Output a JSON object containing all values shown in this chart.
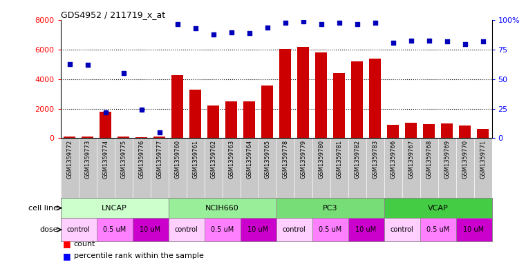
{
  "title": "GDS4952 / 211719_x_at",
  "samples": [
    "GSM1359772",
    "GSM1359773",
    "GSM1359774",
    "GSM1359775",
    "GSM1359776",
    "GSM1359777",
    "GSM1359760",
    "GSM1359761",
    "GSM1359762",
    "GSM1359763",
    "GSM1359764",
    "GSM1359765",
    "GSM1359778",
    "GSM1359779",
    "GSM1359780",
    "GSM1359781",
    "GSM1359782",
    "GSM1359783",
    "GSM1359766",
    "GSM1359767",
    "GSM1359768",
    "GSM1359769",
    "GSM1359770",
    "GSM1359771"
  ],
  "counts": [
    120,
    100,
    1800,
    100,
    80,
    120,
    4300,
    3300,
    2200,
    2500,
    2500,
    3600,
    6050,
    6200,
    5800,
    4400,
    5200,
    5400,
    900,
    1050,
    950,
    1000,
    850,
    650
  ],
  "percentiles": [
    63,
    62,
    22,
    55,
    24,
    5,
    97,
    93,
    88,
    90,
    89,
    94,
    98,
    99,
    97,
    98,
    97,
    98,
    81,
    83,
    83,
    82,
    80,
    82
  ],
  "cell_lines": [
    {
      "name": "LNCAP",
      "start": 0,
      "end": 6,
      "color": "#CCFFCC"
    },
    {
      "name": "NCIH660",
      "start": 6,
      "end": 12,
      "color": "#99EE99"
    },
    {
      "name": "PC3",
      "start": 12,
      "end": 18,
      "color": "#77DD77"
    },
    {
      "name": "VCAP",
      "start": 18,
      "end": 24,
      "color": "#44CC44"
    }
  ],
  "dose_groups": [
    {
      "label": "control",
      "start": 0,
      "end": 2,
      "color": "#FFD0FF"
    },
    {
      "label": "0.5 uM",
      "start": 2,
      "end": 4,
      "color": "#FF80FF"
    },
    {
      "label": "10 uM",
      "start": 4,
      "end": 6,
      "color": "#CC00CC"
    },
    {
      "label": "control",
      "start": 6,
      "end": 8,
      "color": "#FFD0FF"
    },
    {
      "label": "0.5 uM",
      "start": 8,
      "end": 10,
      "color": "#FF80FF"
    },
    {
      "label": "10 uM",
      "start": 10,
      "end": 12,
      "color": "#CC00CC"
    },
    {
      "label": "control",
      "start": 12,
      "end": 14,
      "color": "#FFD0FF"
    },
    {
      "label": "0.5 uM",
      "start": 14,
      "end": 16,
      "color": "#FF80FF"
    },
    {
      "label": "10 uM",
      "start": 16,
      "end": 18,
      "color": "#CC00CC"
    },
    {
      "label": "control",
      "start": 18,
      "end": 20,
      "color": "#FFD0FF"
    },
    {
      "label": "0.5 uM",
      "start": 20,
      "end": 22,
      "color": "#FF80FF"
    },
    {
      "label": "10 uM",
      "start": 22,
      "end": 24,
      "color": "#CC00CC"
    }
  ],
  "bar_color": "#CC0000",
  "dot_color": "#0000BB",
  "ylim_left": [
    0,
    8000
  ],
  "ylim_right": [
    0,
    100
  ],
  "yticks_left": [
    0,
    2000,
    4000,
    6000,
    8000
  ],
  "yticks_right": [
    0,
    25,
    50,
    75,
    100
  ],
  "plot_bg": "#FFFFFF",
  "tick_area_bg": "#C8C8C8",
  "cell_line_border": "#888888",
  "dose_border": "#888888"
}
